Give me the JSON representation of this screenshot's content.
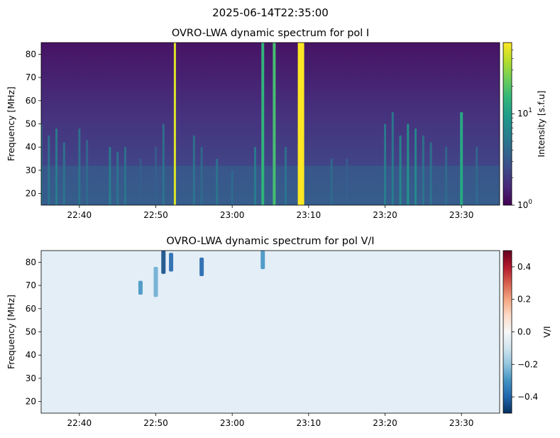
{
  "figure_title": "2025-06-14T22:35:00",
  "chart_data": [
    {
      "type": "heatmap",
      "title": "OVRO-LWA dynamic spectrum for pol I",
      "xlabel": "",
      "ylabel": "Frequency [MHz]",
      "x_ticks": [
        "22:40",
        "22:50",
        "23:00",
        "23:10",
        "23:20",
        "23:30"
      ],
      "x_range": [
        "22:35",
        "23:35"
      ],
      "y_ticks": [
        20,
        30,
        40,
        50,
        60,
        70,
        80
      ],
      "ylim": [
        15,
        85
      ],
      "colorbar": {
        "label": "Intensity [s.f.u]",
        "scale": "log",
        "range": [
          1,
          60
        ],
        "tick_labels": [
          {
            "value": 1,
            "base": "10",
            "exp": "0"
          },
          {
            "value": 10,
            "base": "10",
            "exp": "1"
          }
        ],
        "colormap": "viridis",
        "colors": [
          "#440154",
          "#482878",
          "#3e4989",
          "#31688e",
          "#26828e",
          "#1f9e89",
          "#35b779",
          "#6ece58",
          "#b5de2b",
          "#fde725"
        ]
      },
      "bursts": [
        {
          "time": "22:35",
          "fmin": 15,
          "fmax": 50,
          "level": 0.45
        },
        {
          "time": "22:36",
          "fmin": 15,
          "fmax": 45,
          "level": 0.4
        },
        {
          "time": "22:37",
          "fmin": 15,
          "fmax": 48,
          "level": 0.45
        },
        {
          "time": "22:38",
          "fmin": 15,
          "fmax": 42,
          "level": 0.4
        },
        {
          "time": "22:40",
          "fmin": 15,
          "fmax": 48,
          "level": 0.4
        },
        {
          "time": "22:41",
          "fmin": 15,
          "fmax": 43,
          "level": 0.35
        },
        {
          "time": "22:44",
          "fmin": 15,
          "fmax": 40,
          "level": 0.45
        },
        {
          "time": "22:45",
          "fmin": 15,
          "fmax": 38,
          "level": 0.4
        },
        {
          "time": "22:46",
          "fmin": 15,
          "fmax": 40,
          "level": 0.4
        },
        {
          "time": "22:48",
          "fmin": 15,
          "fmax": 35,
          "level": 0.3
        },
        {
          "time": "22:50",
          "fmin": 15,
          "fmax": 40,
          "level": 0.3
        },
        {
          "time": "22:51",
          "fmin": 15,
          "fmax": 50,
          "level": 0.4
        },
        {
          "time": "22:52.5",
          "fmin": 15,
          "fmax": 85,
          "level": 0.95
        },
        {
          "time": "22:55",
          "fmin": 15,
          "fmax": 45,
          "level": 0.4
        },
        {
          "time": "22:56",
          "fmin": 15,
          "fmax": 40,
          "level": 0.35
        },
        {
          "time": "22:58",
          "fmin": 15,
          "fmax": 35,
          "level": 0.4
        },
        {
          "time": "23:00",
          "fmin": 15,
          "fmax": 30,
          "level": 0.35
        },
        {
          "time": "23:03",
          "fmin": 15,
          "fmax": 40,
          "level": 0.45
        },
        {
          "time": "23:04",
          "fmin": 15,
          "fmax": 85,
          "level": 0.65
        },
        {
          "time": "23:05.5",
          "fmin": 15,
          "fmax": 85,
          "level": 0.7
        },
        {
          "time": "23:07",
          "fmin": 15,
          "fmax": 40,
          "level": 0.4
        },
        {
          "time": "23:09",
          "fmin": 15,
          "fmax": 85,
          "level": 1.0
        },
        {
          "time": "23:13",
          "fmin": 15,
          "fmax": 35,
          "level": 0.35
        },
        {
          "time": "23:15",
          "fmin": 15,
          "fmax": 35,
          "level": 0.3
        },
        {
          "time": "23:20",
          "fmin": 15,
          "fmax": 50,
          "level": 0.45
        },
        {
          "time": "23:21",
          "fmin": 15,
          "fmax": 55,
          "level": 0.45
        },
        {
          "time": "23:22",
          "fmin": 15,
          "fmax": 45,
          "level": 0.5
        },
        {
          "time": "23:23",
          "fmin": 15,
          "fmax": 50,
          "level": 0.55
        },
        {
          "time": "23:24",
          "fmin": 15,
          "fmax": 48,
          "level": 0.5
        },
        {
          "time": "23:25",
          "fmin": 15,
          "fmax": 45,
          "level": 0.4
        },
        {
          "time": "23:26",
          "fmin": 15,
          "fmax": 42,
          "level": 0.4
        },
        {
          "time": "23:28",
          "fmin": 15,
          "fmax": 40,
          "level": 0.35
        },
        {
          "time": "23:30",
          "fmin": 15,
          "fmax": 55,
          "level": 0.6
        },
        {
          "time": "23:32",
          "fmin": 15,
          "fmax": 40,
          "level": 0.35
        }
      ]
    },
    {
      "type": "heatmap",
      "title": "OVRO-LWA dynamic spectrum for pol V/I",
      "xlabel": "",
      "ylabel": "Frequency [MHz]",
      "x_ticks": [
        "22:40",
        "22:50",
        "23:00",
        "23:10",
        "23:20",
        "23:30"
      ],
      "x_range": [
        "22:35",
        "23:35"
      ],
      "y_ticks": [
        20,
        30,
        40,
        50,
        60,
        70,
        80
      ],
      "ylim": [
        15,
        85
      ],
      "colorbar": {
        "label": "V/I",
        "scale": "linear",
        "range": [
          -0.5,
          0.5
        ],
        "tick_labels": [
          "0.4",
          "0.2",
          "0.0",
          "−0.2",
          "−0.4"
        ],
        "tick_values": [
          0.4,
          0.2,
          0.0,
          -0.2,
          -0.4
        ],
        "colormap": "RdBu_r",
        "colors": [
          "#053061",
          "#2166ac",
          "#4393c3",
          "#92c5de",
          "#d1e5f0",
          "#f7f7f7",
          "#fddbc7",
          "#f4a582",
          "#d6604d",
          "#b2182b",
          "#67001f"
        ]
      },
      "features": [
        {
          "time": "22:51",
          "fmin": 75,
          "fmax": 85,
          "value": -0.45
        },
        {
          "time": "22:52",
          "fmin": 76,
          "fmax": 84,
          "value": -0.4
        },
        {
          "time": "22:50",
          "fmin": 65,
          "fmax": 78,
          "value": -0.25
        },
        {
          "time": "22:56",
          "fmin": 74,
          "fmax": 82,
          "value": -0.4
        },
        {
          "time": "23:04",
          "fmin": 77,
          "fmax": 85,
          "value": -0.3
        },
        {
          "time": "22:48",
          "fmin": 66,
          "fmax": 72,
          "value": -0.3
        }
      ]
    }
  ]
}
